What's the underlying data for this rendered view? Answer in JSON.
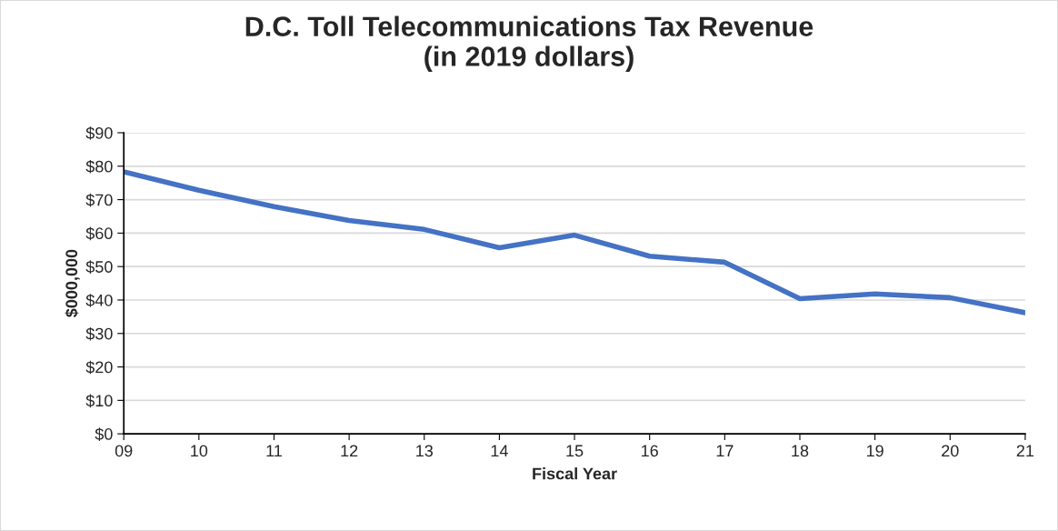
{
  "chart_data": {
    "type": "line",
    "title": "D.C. Toll Telecommunications Tax Revenue\n(in 2019 dollars)",
    "xlabel": "Fiscal Year",
    "ylabel": "$000,000",
    "categories": [
      "09",
      "10",
      "11",
      "12",
      "13",
      "14",
      "15",
      "16",
      "17",
      "18",
      "19",
      "20",
      "21"
    ],
    "series": [
      {
        "color": "#4472c4",
        "values": [
          78.3,
          72.8,
          67.9,
          63.8,
          61.1,
          55.6,
          59.4,
          53.1,
          51.3,
          40.4,
          41.8,
          40.7,
          36.2
        ]
      }
    ],
    "ylim": [
      0,
      90
    ],
    "yticks": [
      {
        "value": 0,
        "label": "$0"
      },
      {
        "value": 10,
        "label": "$10"
      },
      {
        "value": 20,
        "label": "$20"
      },
      {
        "value": 30,
        "label": "$30"
      },
      {
        "value": 40,
        "label": "$40"
      },
      {
        "value": 50,
        "label": "$50"
      },
      {
        "value": 60,
        "label": "$60"
      },
      {
        "value": 70,
        "label": "$70"
      },
      {
        "value": 80,
        "label": "$80"
      },
      {
        "value": 90,
        "label": "$90"
      }
    ],
    "grid": "y",
    "marker": "none",
    "line_style": "solid"
  }
}
